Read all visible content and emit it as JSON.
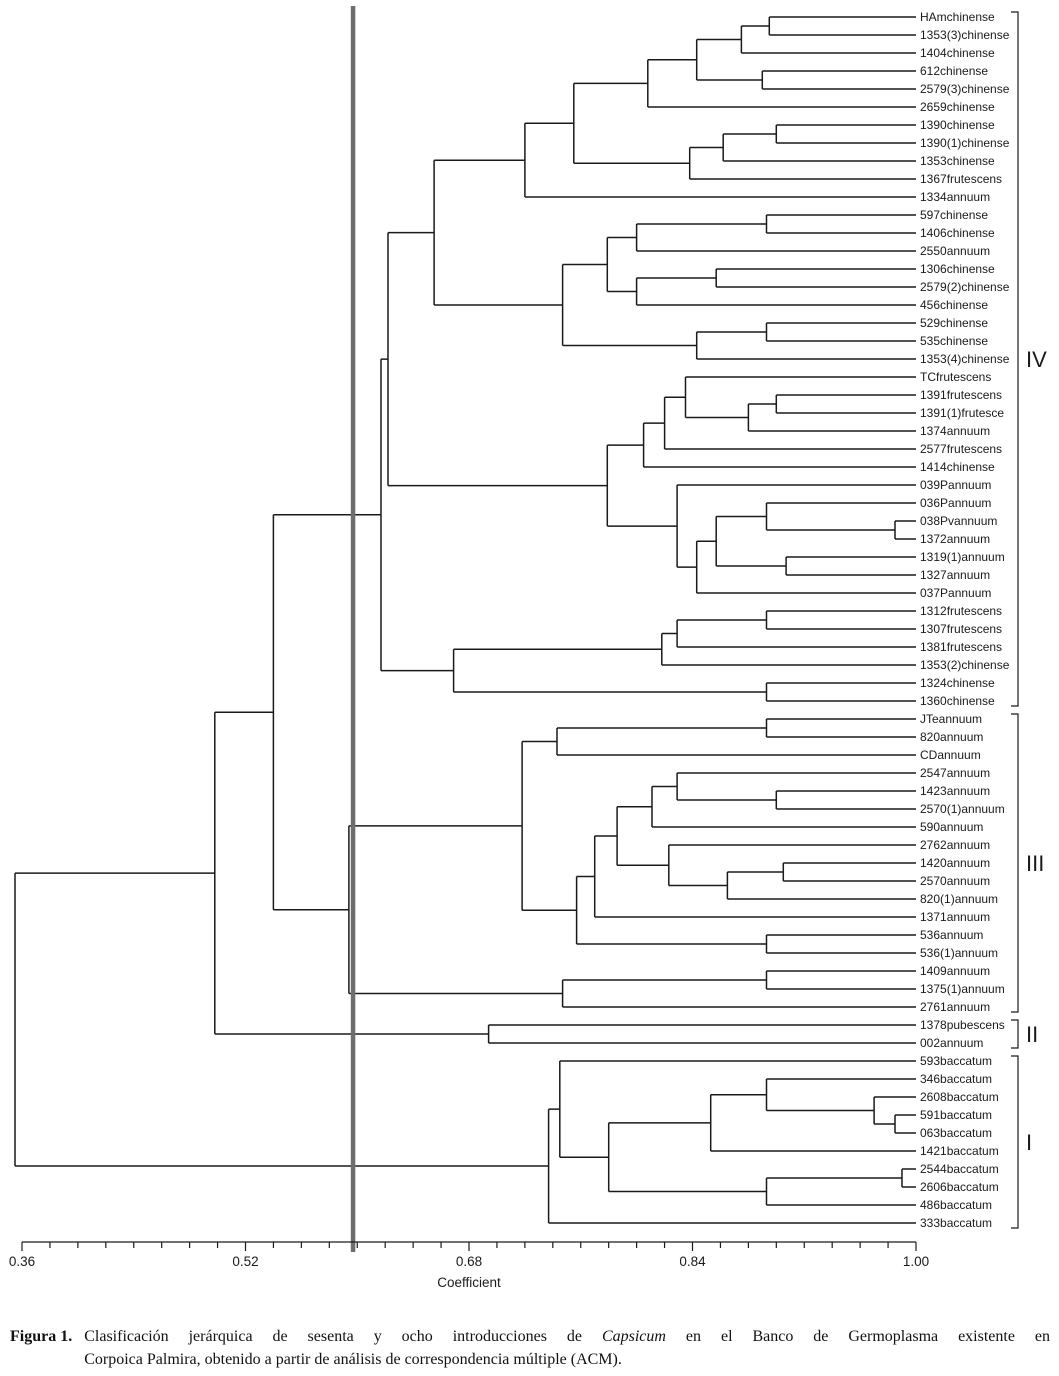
{
  "chart_data": {
    "type": "dendrogram",
    "xlabel": "Coefficient",
    "axis": {
      "min": 0.36,
      "max": 1.0,
      "major_ticks": [
        "0.36",
        "0.52",
        "0.68",
        "0.84",
        "1.00"
      ],
      "minor_tick_step": 0.02
    },
    "cutoff_line": 0.597,
    "groups": [
      {
        "label": "IV",
        "first_leaf": 0,
        "last_leaf": 38
      },
      {
        "label": "III",
        "first_leaf": 39,
        "last_leaf": 55
      },
      {
        "label": "II",
        "first_leaf": 56,
        "last_leaf": 57
      },
      {
        "label": "I",
        "first_leaf": 58,
        "last_leaf": 67
      }
    ],
    "leaves": [
      "HAmchinense",
      "1353(3)chinense",
      "1404chinense",
      "612chinense",
      "2579(3)chinense",
      "2659chinense",
      "1390chinense",
      "1390(1)chinense",
      "1353chinense",
      "1367frutescens",
      "1334annuum",
      "597chinense",
      "1406chinense",
      "2550annuum",
      "1306chinense",
      "2579(2)chinense",
      "456chinense",
      "529chinense",
      "535chinense",
      "1353(4)chinense",
      "TCfrutescens",
      "1391frutescens",
      "1391(1)frutesce",
      "1374annuum",
      "2577frutescens",
      "1414chinense",
      "039Pannuum",
      "036Pannuum",
      "038Pvannuum",
      "1372annuum",
      "1319(1)annuum",
      "1327annuum",
      "037Pannuum",
      "1312frutescens",
      "1307frutescens",
      "1381frutescens",
      "1353(2)chinense",
      "1324chinense",
      "1360chinense",
      "JTeannuum",
      "820annuum",
      "CDannuum",
      "2547annuum",
      "1423annuum",
      "2570(1)annuum",
      "590annuum",
      "2762annuum",
      "1420annuum",
      "2570annuum",
      "820(1)annuum",
      "1371annuum",
      "536annuum",
      "536(1)annuum",
      "1409annuum",
      "1375(1)annuum",
      "2761annuum",
      "1378pubescens",
      "002annuum",
      "593baccatum",
      "346baccatum",
      "2608baccatum",
      "591baccatum",
      "063baccatum",
      "1421baccatum",
      "2544baccatum",
      "2606baccatum",
      "486baccatum",
      "333baccatum"
    ],
    "tree": {
      "h": 0.355,
      "c": [
        {
          "h": 0.498,
          "c": [
            {
              "h": 0.54,
              "c": [
                {
                  "h": 0.617,
                  "c": [
                    {
                      "h": 0.622,
                      "c": [
                        {
                          "h": 0.655,
                          "c": [
                            {
                              "h": 0.72,
                              "c": [
                                {
                                  "h": 0.755,
                                  "c": [
                                    {
                                      "h": 0.808,
                                      "c": [
                                        {
                                          "h": 0.843,
                                          "c": [
                                            {
                                              "h": 0.875,
                                              "c": [
                                                {
                                                  "h": 0.895,
                                                  "c": [
                                                    0,
                                                    1
                                                  ]
                                                },
                                                2
                                              ]
                                            },
                                            {
                                              "h": 0.89,
                                              "c": [
                                                3,
                                                4
                                              ]
                                            }
                                          ]
                                        },
                                        5
                                      ]
                                    },
                                    {
                                      "h": 0.838,
                                      "c": [
                                        {
                                          "h": 0.862,
                                          "c": [
                                            {
                                              "h": 0.9,
                                              "c": [
                                                6,
                                                7
                                              ]
                                            },
                                            8
                                          ]
                                        },
                                        9
                                      ]
                                    }
                                  ]
                                },
                                10
                              ]
                            },
                            {
                              "h": 0.747,
                              "c": [
                                {
                                  "h": 0.779,
                                  "c": [
                                    {
                                      "h": 0.8,
                                      "c": [
                                        {
                                          "h": 0.893,
                                          "c": [
                                            11,
                                            12
                                          ]
                                        },
                                        13
                                      ]
                                    },
                                    {
                                      "h": 0.8,
                                      "c": [
                                        {
                                          "h": 0.857,
                                          "c": [
                                            14,
                                            15
                                          ]
                                        },
                                        16
                                      ]
                                    }
                                  ]
                                },
                                {
                                  "h": 0.843,
                                  "c": [
                                    {
                                      "h": 0.893,
                                      "c": [
                                        17,
                                        18
                                      ]
                                    },
                                    19
                                  ]
                                }
                              ]
                            }
                          ]
                        },
                        {
                          "h": 0.779,
                          "c": [
                            {
                              "h": 0.805,
                              "c": [
                                {
                                  "h": 0.82,
                                  "c": [
                                    {
                                      "h": 0.835,
                                      "c": [
                                        20,
                                        {
                                          "h": 0.88,
                                          "c": [
                                            {
                                              "h": 0.9,
                                              "c": [
                                                21,
                                                22
                                              ]
                                            },
                                            23
                                          ]
                                        }
                                      ]
                                    },
                                    24
                                  ]
                                },
                                25
                              ]
                            },
                            {
                              "h": 0.829,
                              "c": [
                                26,
                                {
                                  "h": 0.843,
                                  "c": [
                                    {
                                      "h": 0.857,
                                      "c": [
                                        {
                                          "h": 0.893,
                                          "c": [
                                            27,
                                            {
                                              "h": 0.985,
                                              "c": [
                                                28,
                                                29
                                              ]
                                            }
                                          ]
                                        },
                                        {
                                          "h": 0.907,
                                          "c": [
                                            30,
                                            31
                                          ]
                                        }
                                      ]
                                    },
                                    32
                                  ]
                                }
                              ]
                            }
                          ]
                        }
                      ]
                    },
                    {
                      "h": 0.669,
                      "c": [
                        {
                          "h": 0.818,
                          "c": [
                            {
                              "h": 0.829,
                              "c": [
                                {
                                  "h": 0.893,
                                  "c": [
                                    33,
                                    34
                                  ]
                                },
                                35
                              ]
                            },
                            36
                          ]
                        },
                        {
                          "h": 0.893,
                          "c": [
                            37,
                            38
                          ]
                        }
                      ]
                    }
                  ]
                },
                {
                  "h": 0.594,
                  "c": [
                    {
                      "h": 0.718,
                      "c": [
                        {
                          "h": 0.743,
                          "c": [
                            {
                              "h": 0.893,
                              "c": [
                                39,
                                40
                              ]
                            },
                            41
                          ]
                        },
                        {
                          "h": 0.757,
                          "c": [
                            {
                              "h": 0.77,
                              "c": [
                                {
                                  "h": 0.786,
                                  "c": [
                                    {
                                      "h": 0.811,
                                      "c": [
                                        {
                                          "h": 0.829,
                                          "c": [
                                            42,
                                            {
                                              "h": 0.9,
                                              "c": [
                                                43,
                                                44
                                              ]
                                            }
                                          ]
                                        },
                                        45
                                      ]
                                    },
                                    {
                                      "h": 0.823,
                                      "c": [
                                        46,
                                        {
                                          "h": 0.865,
                                          "c": [
                                            {
                                              "h": 0.905,
                                              "c": [
                                                47,
                                                48
                                              ]
                                            },
                                            49
                                          ]
                                        }
                                      ]
                                    }
                                  ]
                                },
                                50
                              ]
                            },
                            {
                              "h": 0.893,
                              "c": [
                                51,
                                52
                              ]
                            }
                          ]
                        }
                      ]
                    },
                    {
                      "h": 0.747,
                      "c": [
                        {
                          "h": 0.893,
                          "c": [
                            53,
                            54
                          ]
                        },
                        55
                      ]
                    }
                  ]
                }
              ]
            },
            {
              "h": 0.694,
              "c": [
                56,
                57
              ]
            }
          ]
        },
        {
          "h": 0.737,
          "c": [
            {
              "h": 0.745,
              "c": [
                58,
                {
                  "h": 0.78,
                  "c": [
                    {
                      "h": 0.853,
                      "c": [
                        {
                          "h": 0.893,
                          "c": [
                            59,
                            {
                              "h": 0.97,
                              "c": [
                                60,
                                {
                                  "h": 0.985,
                                  "c": [
                                    61,
                                    62
                                  ]
                                }
                              ]
                            }
                          ]
                        },
                        63
                      ]
                    },
                    {
                      "h": 0.893,
                      "c": [
                        {
                          "h": 0.99,
                          "c": [
                            64,
                            65
                          ]
                        },
                        66
                      ]
                    }
                  ]
                }
              ]
            },
            67
          ]
        }
      ]
    }
  },
  "caption": {
    "label": "Figura 1.",
    "line1_pre": "Clasificación jerárquica de sesenta y ocho introducciones de ",
    "line1_italic": "Capsicum",
    "line1_post": " en el Banco de Germoplasma existente en",
    "line2": "Corpoica Palmira, obtenido a partir de análisis de correspondencia múltiple (ACM)."
  },
  "colors": {
    "line": "#1a1a1a",
    "cutoff": "#6e6e6e",
    "text": "#1a1a1a",
    "background": "#ffffff"
  }
}
